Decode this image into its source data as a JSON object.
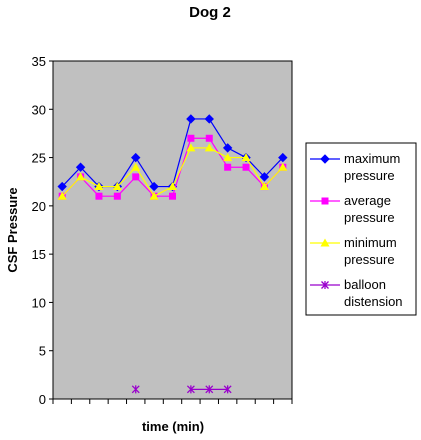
{
  "chart_data": {
    "type": "line",
    "title": "Dog 2",
    "xlabel": "time (min)",
    "ylabel": "CSF Pressure",
    "ylim": [
      0,
      35
    ],
    "yticks": [
      0,
      5,
      10,
      15,
      20,
      25,
      30,
      35
    ],
    "x_count": 13,
    "grid": false,
    "legend_position": "right",
    "plot_background": "#C0C0C0",
    "series": [
      {
        "name": "maximum pressure",
        "legend_lines": [
          "maximum",
          "pressure"
        ],
        "color": "#0000FF",
        "marker": "diamond",
        "values": [
          22,
          24,
          22,
          22,
          25,
          22,
          22,
          29,
          29,
          26,
          25,
          23,
          25
        ]
      },
      {
        "name": "average pressure",
        "legend_lines": [
          "average",
          "pressure"
        ],
        "color": "#FF00FF",
        "marker": "square",
        "values": [
          21,
          23,
          21,
          21,
          23,
          21,
          21,
          27,
          27,
          24,
          24,
          22,
          24
        ]
      },
      {
        "name": "minimum pressure",
        "legend_lines": [
          "minimum",
          "pressure"
        ],
        "color": "#FFFF00",
        "marker": "triangle",
        "values": [
          21,
          23,
          22,
          22,
          24,
          21,
          22,
          26,
          26,
          25,
          25,
          22,
          24
        ]
      },
      {
        "name": "balloon distension",
        "legend_lines": [
          "balloon",
          "distension"
        ],
        "color": "#9900CC",
        "marker": "star",
        "values": [
          null,
          null,
          null,
          null,
          1,
          null,
          null,
          1,
          1,
          1,
          null,
          null,
          null
        ]
      }
    ]
  }
}
